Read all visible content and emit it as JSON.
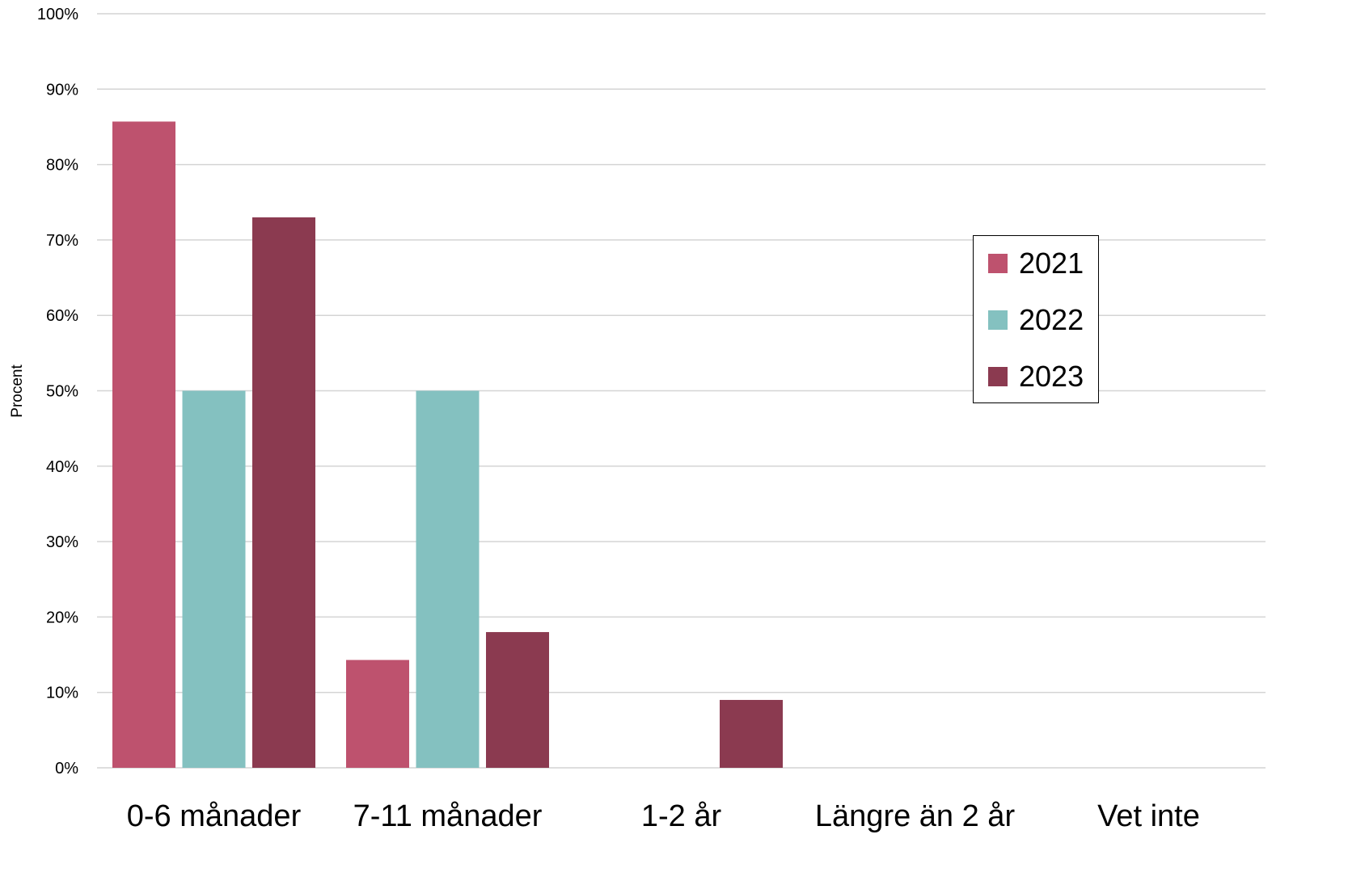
{
  "chart_data": {
    "type": "bar",
    "title": "",
    "xlabel": "",
    "ylabel": "Procent",
    "ylim": [
      0,
      100
    ],
    "yticks": [
      "0%",
      "10%",
      "20%",
      "30%",
      "40%",
      "50%",
      "60%",
      "70%",
      "80%",
      "90%",
      "100%"
    ],
    "grid": true,
    "legend_position": "right",
    "categories": [
      "0-6 månader",
      "7-11 månader",
      "1-2 år",
      "Längre än 2 år",
      "Vet inte"
    ],
    "series": [
      {
        "name": "2021",
        "color": "#BE526E",
        "values": [
          85.7,
          14.3,
          0,
          0,
          0
        ]
      },
      {
        "name": "2022",
        "color": "#84C1C0",
        "values": [
          50,
          50,
          0,
          0,
          0
        ]
      },
      {
        "name": "2023",
        "color": "#8B3A50",
        "values": [
          73,
          18,
          9,
          0,
          0
        ]
      }
    ]
  }
}
